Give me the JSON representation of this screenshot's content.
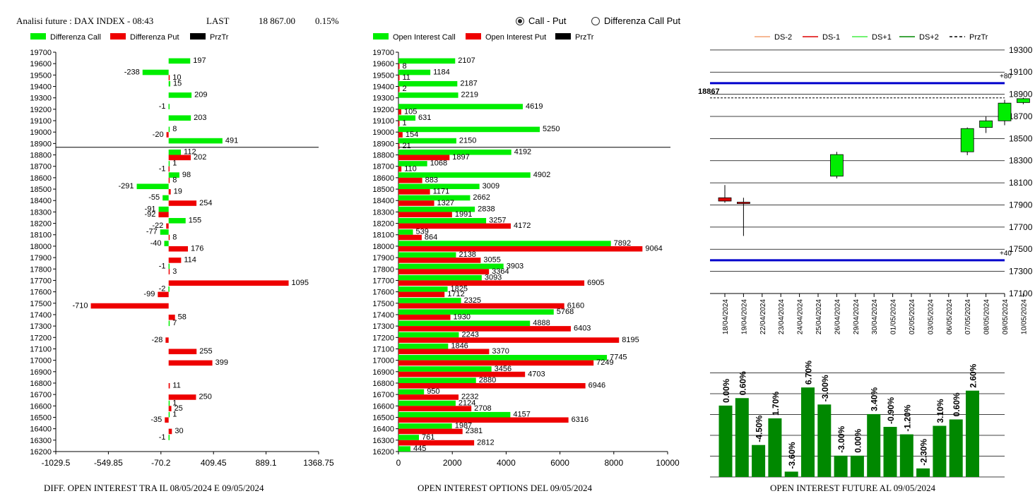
{
  "header": {
    "title": "Analisi future : DAX INDEX - 08:43",
    "last_label": "LAST",
    "last_value": "18 867.00",
    "change": "0.15%"
  },
  "radio": {
    "option1": "Call - Put",
    "option2": "Differenza Call Put",
    "selected": "Call - Put"
  },
  "colors": {
    "call": "#00ee00",
    "put": "#ee0000",
    "oi_bar": "#008800",
    "level_line": "#0000cc",
    "ds2": "#f4a070",
    "ds1": "#dd0000",
    "ds_plus1": "#44ee44",
    "ds_plus2": "#008800"
  },
  "footers": {
    "diff": "DIFF. OPEN INTEREST TRA IL 08/05/2024 E 09/05/2024",
    "oi": "OPEN INTEREST OPTIONS DEL 09/05/2024",
    "fut": "OPEN INTEREST FUTURE AL 09/05/2024"
  },
  "chart_data": [
    {
      "type": "bar",
      "orientation": "horizontal",
      "legend": [
        "Differenza Call",
        "Differenza Put",
        "PrzTr"
      ],
      "strikes": [
        19700,
        19600,
        19500,
        19400,
        19300,
        19200,
        19100,
        19000,
        18900,
        18800,
        18700,
        18600,
        18500,
        18400,
        18300,
        18200,
        18100,
        18000,
        17900,
        17800,
        17700,
        17600,
        17500,
        17400,
        17300,
        17200,
        17100,
        17000,
        16900,
        16800,
        16700,
        16600,
        16500,
        16400,
        16300,
        16200
      ],
      "series": [
        {
          "name": "Differenza Call",
          "values": [
            null,
            197,
            -238,
            15,
            209,
            -1,
            203,
            8,
            491,
            112,
            1,
            98,
            -291,
            -55,
            -91,
            155,
            -77,
            -40,
            null,
            -1,
            null,
            -2,
            null,
            null,
            7,
            null,
            null,
            null,
            null,
            null,
            null,
            1,
            1,
            null,
            -1,
            null
          ]
        },
        {
          "name": "Differenza Put",
          "values": [
            null,
            null,
            10,
            null,
            null,
            null,
            null,
            -20,
            null,
            202,
            -1,
            8,
            19,
            254,
            -92,
            -22,
            8,
            176,
            114,
            3,
            1095,
            -99,
            -710,
            58,
            null,
            -28,
            255,
            399,
            null,
            11,
            250,
            25,
            -35,
            30,
            null,
            null
          ]
        }
      ],
      "xlim": [
        -1029.5,
        1368.75
      ],
      "xticks": [
        "-1029.5",
        "-549.85",
        "-70.2",
        "409.45",
        "889.1",
        "1368.75"
      ],
      "price_line": 18867
    },
    {
      "type": "bar",
      "orientation": "horizontal",
      "legend": [
        "Open Interest Call",
        "Open Interest Put",
        "PrzTr"
      ],
      "strikes": [
        19700,
        19600,
        19500,
        19400,
        19300,
        19200,
        19100,
        19000,
        18900,
        18800,
        18700,
        18600,
        18500,
        18400,
        18300,
        18200,
        18100,
        18000,
        17900,
        17800,
        17700,
        17600,
        17500,
        17400,
        17300,
        17200,
        17100,
        17000,
        16900,
        16800,
        16700,
        16600,
        16500,
        16400,
        16300,
        16200
      ],
      "series": [
        {
          "name": "Open Interest Call",
          "values": [
            null,
            2107,
            1184,
            2187,
            2219,
            4619,
            631,
            5250,
            2150,
            4192,
            1068,
            4902,
            3009,
            2662,
            2838,
            3257,
            539,
            7892,
            2138,
            3903,
            3093,
            1825,
            2325,
            5768,
            4888,
            2243,
            1846,
            7745,
            3456,
            2880,
            950,
            2124,
            4157,
            1987,
            761,
            445
          ]
        },
        {
          "name": "Open Interest Put",
          "values": [
            null,
            8,
            11,
            2,
            null,
            105,
            1,
            154,
            21,
            1897,
            110,
            883,
            1171,
            1327,
            1991,
            4172,
            864,
            9064,
            3055,
            3364,
            6905,
            1712,
            6160,
            1930,
            6403,
            8195,
            3370,
            7249,
            4703,
            6946,
            2232,
            2708,
            6316,
            2381,
            2812,
            null
          ]
        }
      ],
      "xlim": [
        0,
        10000
      ],
      "xticks": [
        "0",
        "2000",
        "4000",
        "6000",
        "8000",
        "10000"
      ],
      "price_line": 18867
    },
    {
      "type": "candlestick",
      "legend": [
        "DS-2",
        "DS-1",
        "DS+1",
        "DS+2",
        "PrzTr"
      ],
      "dates": [
        "18/04/2024",
        "19/04/2024",
        "22/04/2024",
        "23/04/2024",
        "24/04/2024",
        "25/04/2024",
        "26/04/2024",
        "29/04/2024",
        "30/04/2024",
        "01/05/2024",
        "02/05/2024",
        "03/05/2024",
        "06/05/2024",
        "07/05/2024",
        "08/05/2024",
        "09/05/2024",
        "10/05/2024"
      ],
      "candles": [
        {
          "date": "18/04/2024",
          "open": 17965,
          "high": 18080,
          "low": 17920,
          "close": 17935
        },
        {
          "date": "19/04/2024",
          "open": 17925,
          "high": 17965,
          "low": 17620,
          "close": 17920
        },
        {
          "date": "26/04/2024",
          "open": 18160,
          "high": 18380,
          "low": 18140,
          "close": 18355
        },
        {
          "date": "07/05/2024",
          "open": 18380,
          "high": 18600,
          "low": 18350,
          "close": 18590
        },
        {
          "date": "08/05/2024",
          "open": 18600,
          "high": 18700,
          "low": 18550,
          "close": 18660
        },
        {
          "date": "09/05/2024",
          "open": 18660,
          "high": 18850,
          "low": 18620,
          "close": 18820
        },
        {
          "date": "10/05/2024",
          "open": 18825,
          "high": 18870,
          "low": 18810,
          "close": 18860
        }
      ],
      "ylim": [
        17100,
        19350
      ],
      "yticks": [
        "19300",
        "19100",
        "18900",
        "18700",
        "18500",
        "18300",
        "18100",
        "17900",
        "17700",
        "17500",
        "17300",
        "17100"
      ],
      "levels": [
        {
          "label": "+80",
          "value": 19000
        },
        {
          "label": "+40",
          "value": 17400
        }
      ],
      "price_label": "18867",
      "price": 18867
    },
    {
      "type": "bar",
      "labels": [
        "0.00%",
        "0.60%",
        "-4.50%",
        "1.70%",
        "-3.60%",
        "6.70%",
        "-3.00%",
        "-3.00%",
        "0.00%",
        "3.40%",
        "-0.90%",
        "-1.20%",
        "-2.30%",
        "3.10%",
        "0.60%",
        "2.60%"
      ],
      "values": [
        0.0,
        0.6,
        -4.5,
        1.7,
        -3.6,
        6.7,
        -3.0,
        -3.0,
        0.0,
        3.4,
        -0.9,
        -1.2,
        -2.3,
        3.1,
        0.6,
        2.6
      ],
      "relative_heights": [
        0.67,
        0.74,
        0.3,
        0.55,
        0.05,
        0.84,
        0.68,
        0.2,
        0.2,
        0.59,
        0.47,
        0.4,
        0.08,
        0.48,
        0.54,
        0.81
      ]
    }
  ]
}
